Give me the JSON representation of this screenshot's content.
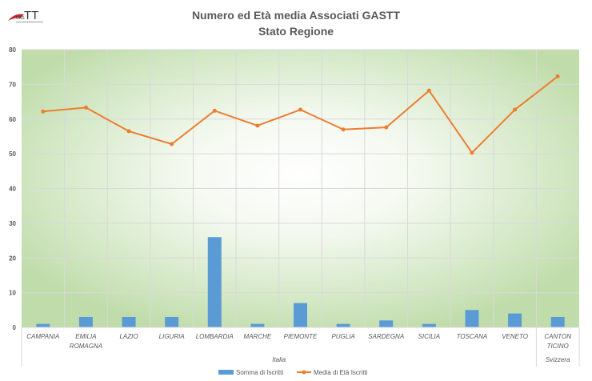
{
  "logo_text": "GAS TT",
  "chart_data": {
    "type": "bar+line",
    "title": "Numero ed Età media  Associati GASTT",
    "subtitle": "Stato Regione",
    "categories": [
      "CAMPANIA",
      "EMILIA ROMAGNA",
      "LAZIO",
      "LIGURIA",
      "LOMBARDIA",
      "MARCHE",
      "PIEMONTE",
      "PUGLIA",
      "SARDEGNA",
      "SICILIA",
      "TOSCANA",
      "VENETO",
      "CANTON TICINO"
    ],
    "groups": [
      {
        "label": "Italia",
        "count": 12
      },
      {
        "label": "Svizzera",
        "count": 1
      }
    ],
    "ylim": [
      0,
      80
    ],
    "yticks": [
      0,
      10,
      20,
      30,
      40,
      50,
      60,
      70,
      80
    ],
    "grid": true,
    "legend_position": "bottom",
    "series": [
      {
        "name": "Somma di Iscritti",
        "type": "bar",
        "color": "#5b9bd5",
        "values": [
          1,
          3,
          3,
          3,
          26,
          1,
          7,
          1,
          2,
          1,
          5,
          4,
          3
        ]
      },
      {
        "name": "Media di Età Iscritti",
        "type": "line",
        "color": "#ed7d31",
        "values": [
          62.2,
          63.3,
          56.5,
          52.8,
          62.4,
          58.1,
          62.7,
          57.0,
          57.6,
          68.2,
          50.3,
          62.7,
          72.3
        ]
      }
    ]
  }
}
